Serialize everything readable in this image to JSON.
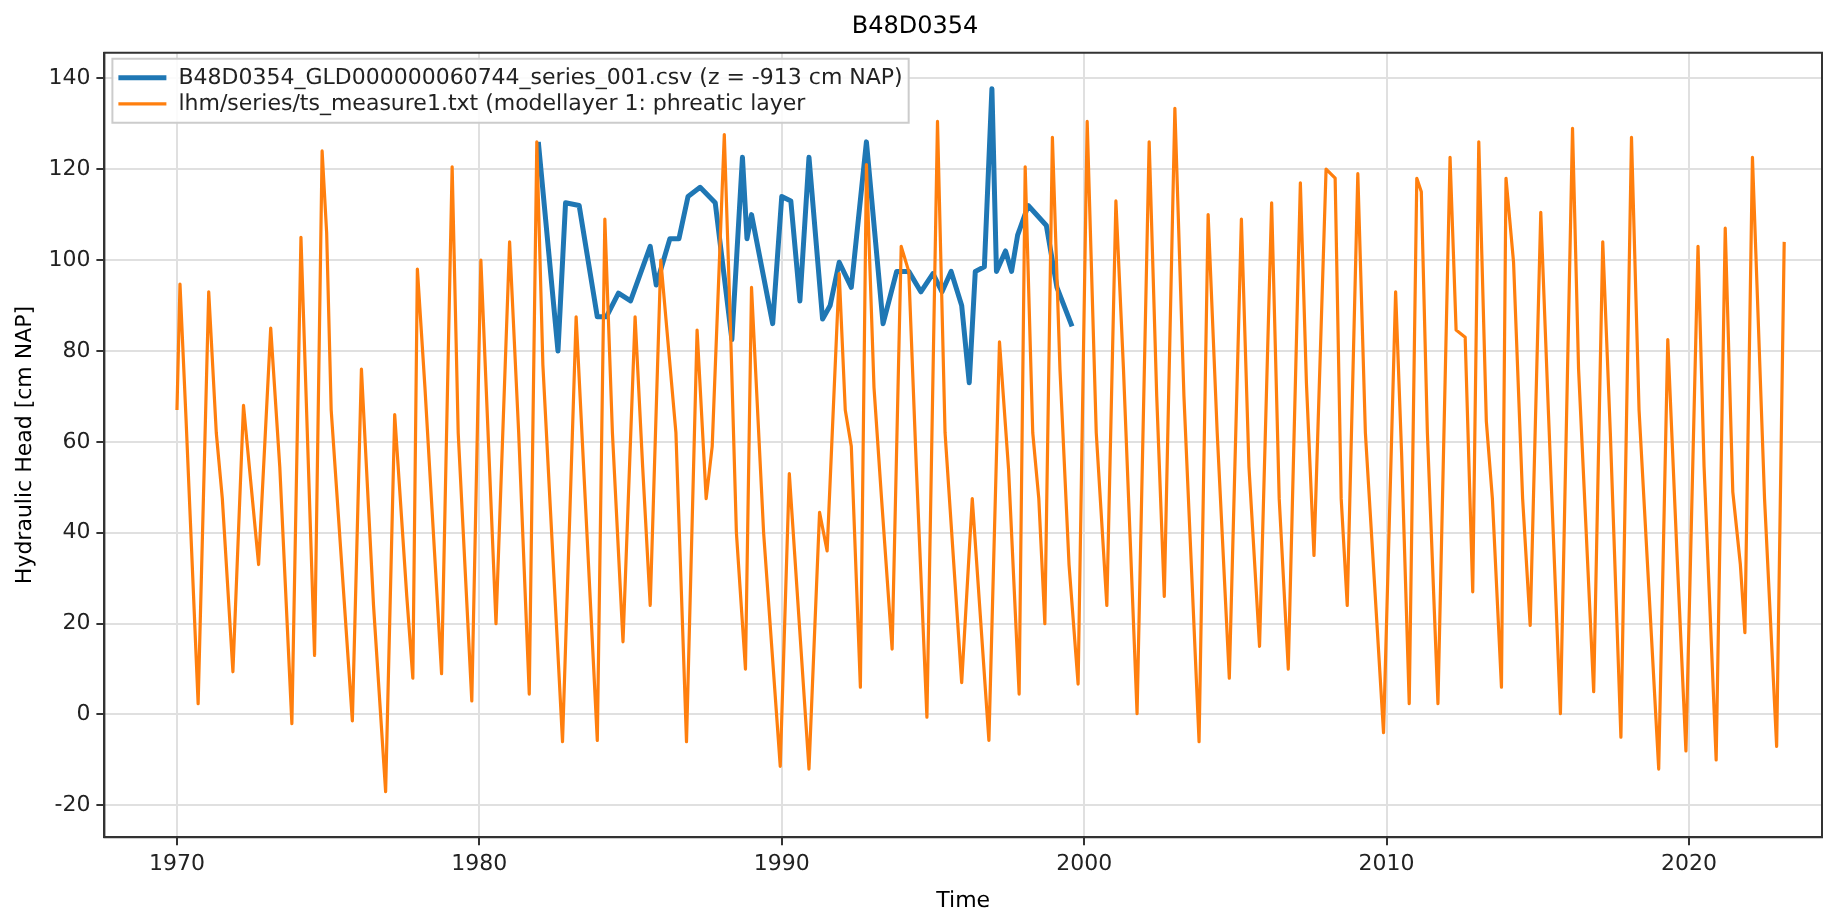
{
  "chart_data": {
    "type": "line",
    "title": "B48D0354",
    "xlabel": "Time",
    "ylabel": "Hydraulic Head [cm NAP]",
    "xlim": [
      1967.6,
      2024.4
    ],
    "xticks": [
      1970,
      1980,
      1990,
      2000,
      2010,
      2020
    ],
    "ylim": [
      -27,
      145.6
    ],
    "yticks": [
      -20,
      0,
      20,
      40,
      60,
      80,
      100,
      120,
      140
    ],
    "grid": true,
    "legend": "top left",
    "marker": "none",
    "line_style": "solid",
    "series": [
      {
        "name": "B48D0354_GLD000000060744_series_001.csv (z = -913 cm NAP)",
        "color": "#1f77b4",
        "x": [
          1981.95,
          1982.6,
          1982.85,
          1983.3,
          1983.9,
          1984.2,
          1984.6,
          1985.0,
          1985.65,
          1985.85,
          1986.3,
          1986.6,
          1986.9,
          1987.3,
          1987.8,
          1988.35,
          1988.7,
          1988.85,
          1989.0,
          1989.7,
          1990.0,
          1990.3,
          1990.6,
          1990.9,
          1991.35,
          1991.6,
          1991.9,
          1992.3,
          1992.8,
          1993.35,
          1993.8,
          1994.2,
          1994.6,
          1995.0,
          1995.3,
          1995.6,
          1995.95,
          1996.2,
          1996.4,
          1996.7,
          1996.95,
          1997.1,
          1997.4,
          1997.6,
          1997.8,
          1998.15,
          1998.75,
          1999.1,
          1999.6
        ],
        "values": [
          126,
          80,
          112.6,
          112,
          87.5,
          87.5,
          92.7,
          91,
          103,
          94.5,
          104.7,
          104.7,
          114,
          116,
          112.6,
          82.5,
          122.6,
          104.7,
          110,
          86,
          114,
          113,
          91,
          122.6,
          87,
          90,
          99.5,
          94,
          126,
          86,
          97.5,
          97.5,
          93,
          97,
          93,
          97.5,
          90,
          73,
          97.5,
          98.5,
          137.7,
          97.5,
          102,
          97.5,
          105.5,
          112,
          107.6,
          94,
          85.4
        ]
      },
      {
        "name": "lhm/series/ts_measure1.txt (modellayer 1: phreatic layer",
        "color": "#ff7f0e",
        "x": [
          1970.0,
          1970.1,
          1970.3,
          1970.7,
          1971.05,
          1971.3,
          1971.5,
          1971.85,
          1972.2,
          1972.7,
          1973.1,
          1973.4,
          1973.8,
          1974.1,
          1974.55,
          1974.8,
          1974.95,
          1975.1,
          1975.8,
          1976.1,
          1976.5,
          1976.9,
          1977.2,
          1977.6,
          1977.8,
          1977.95,
          1978.2,
          1978.75,
          1979.1,
          1979.3,
          1979.75,
          1980.05,
          1980.3,
          1980.55,
          1981.0,
          1981.3,
          1981.65,
          1981.9,
          1982.1,
          1982.75,
          1983.2,
          1983.5,
          1983.9,
          1984.15,
          1984.4,
          1984.75,
          1985.15,
          1985.4,
          1985.65,
          1986.0,
          1986.5,
          1986.85,
          1987.2,
          1987.5,
          1987.7,
          1988.1,
          1988.3,
          1988.5,
          1988.8,
          1989.0,
          1989.4,
          1989.95,
          1990.25,
          1990.9,
          1991.25,
          1991.5,
          1991.9,
          1992.1,
          1992.3,
          1992.6,
          1992.8,
          1993.05,
          1993.3,
          1993.65,
          1993.95,
          1994.2,
          1994.45,
          1994.8,
          1995.15,
          1995.4,
          1995.95,
          1996.3,
          1996.85,
          1997.2,
          1997.5,
          1997.85,
          1998.05,
          1998.3,
          1998.5,
          1998.7,
          1998.95,
          1999.2,
          1999.5,
          1999.8,
          2000.1,
          2000.4,
          2000.75,
          2001.05,
          2001.3,
          2001.75,
          2002.15,
          2002.4,
          2002.65,
          2003.0,
          2003.3,
          2003.8,
          2004.1,
          2004.4,
          2004.8,
          2005.2,
          2005.45,
          2005.8,
          2006.2,
          2006.45,
          2006.75,
          2007.15,
          2007.35,
          2007.6,
          2008.0,
          2008.3,
          2008.5,
          2008.7,
          2009.05,
          2009.3,
          2009.9,
          2010.3,
          2010.5,
          2010.75,
          2011.0,
          2011.15,
          2011.35,
          2011.7,
          2012.1,
          2012.3,
          2012.6,
          2012.85,
          2013.05,
          2013.3,
          2013.5,
          2013.8,
          2013.95,
          2014.2,
          2014.5,
          2014.75,
          2015.1,
          2015.35,
          2015.75,
          2016.15,
          2016.35,
          2016.55,
          2016.85,
          2017.15,
          2017.4,
          2017.75,
          2018.1,
          2018.35,
          2019.0,
          2019.3,
          2019.6,
          2019.9,
          2020.3,
          2020.5,
          2020.9,
          2021.2,
          2021.45,
          2021.7,
          2021.85,
          2022.1,
          2022.25,
          2022.5,
          2022.9,
          2023.15
        ],
        "values": [
          67,
          94.7,
          65,
          2.4,
          93,
          62,
          47.5,
          9.4,
          68,
          33,
          85,
          54.5,
          -2,
          105,
          13,
          124,
          106,
          67,
          -1.4,
          76,
          24,
          -17,
          66,
          26,
          8,
          98,
          72,
          9,
          120.5,
          62,
          3,
          100,
          60,
          20,
          104,
          62,
          4.5,
          126,
          77,
          -6,
          87.5,
          47.5,
          -5.7,
          109,
          62,
          16,
          87.5,
          54.5,
          24,
          100,
          62,
          -6,
          84.6,
          47.5,
          59,
          127.6,
          86,
          40,
          10,
          94,
          40,
          -11.4,
          53,
          -12,
          44.5,
          36,
          97,
          67,
          59,
          6,
          121,
          72,
          47.5,
          14.4,
          103,
          97.5,
          54.5,
          -0.6,
          130.5,
          62,
          7,
          47.5,
          -5.7,
          82,
          54,
          4.5,
          120.5,
          62,
          47.5,
          20,
          127,
          76,
          33,
          6.7,
          130.5,
          62,
          24,
          113,
          76,
          0.2,
          126,
          70,
          26,
          133.4,
          70,
          -6,
          110,
          62,
          8,
          109,
          54.5,
          15,
          112.6,
          47.5,
          10,
          117,
          73,
          35,
          120,
          118,
          47.5,
          24,
          119,
          62,
          -4,
          93,
          57,
          2.4,
          118,
          115,
          62,
          2.4,
          122.6,
          84.6,
          83,
          27,
          126,
          64.5,
          47.5,
          6,
          118,
          99.5,
          47.5,
          19.6,
          110.5,
          67,
          0.2,
          129,
          76,
          47.5,
          5,
          104,
          62,
          -5,
          127,
          67,
          -12,
          82.5,
          36,
          -8,
          103,
          54.5,
          -10,
          107,
          49,
          33,
          18,
          122.6,
          94.5,
          47.5,
          -7,
          104
        ]
      }
    ]
  }
}
